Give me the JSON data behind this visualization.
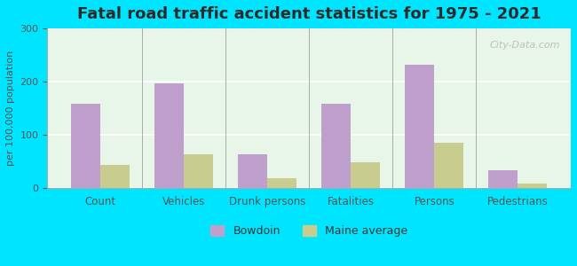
{
  "title": "Fatal road traffic accident statistics for 1975 - 2021",
  "ylabel": "per 100,000 population",
  "categories": [
    "Count",
    "Vehicles",
    "Drunk persons",
    "Fatalities",
    "Persons",
    "Pedestrians"
  ],
  "bowdoin_values": [
    158,
    197,
    63,
    158,
    232,
    33
  ],
  "maine_values": [
    42,
    62,
    17,
    48,
    85,
    8
  ],
  "bowdoin_color": "#bf9fcc",
  "maine_color": "#c8cc8f",
  "bg_color_outer": "#00e5ff",
  "bg_color_inner_top": "#e8f5e9",
  "bg_color_inner_bottom": "#f0f8e8",
  "ylim": [
    0,
    300
  ],
  "yticks": [
    0,
    100,
    200,
    300
  ],
  "watermark": "City-Data.com",
  "legend_bowdoin": "Bowdoin",
  "legend_maine": "Maine average",
  "bar_width": 0.35
}
